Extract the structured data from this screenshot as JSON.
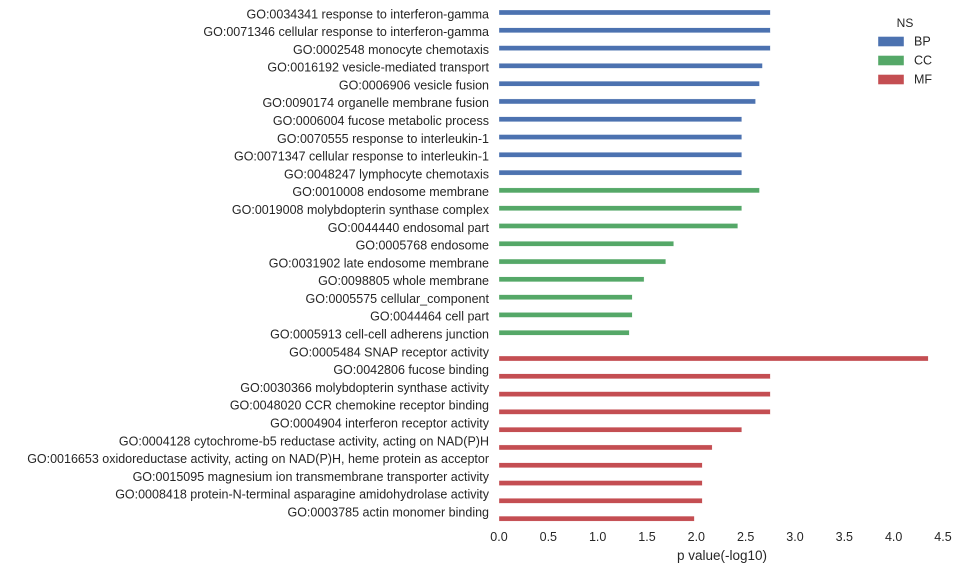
{
  "chart_data": {
    "type": "bar",
    "orientation": "horizontal",
    "xlabel": "p value(-log10)",
    "xlim": [
      0,
      4.5
    ],
    "xticks": [
      "0.0",
      "0.5",
      "1.0",
      "1.5",
      "2.0",
      "2.5",
      "3.0",
      "3.5",
      "4.0",
      "4.5"
    ],
    "grid": false,
    "legend": {
      "title": "NS",
      "placement": "top-right",
      "entries": [
        {
          "name": "BP",
          "color": "#4c72b0"
        },
        {
          "name": "CC",
          "color": "#55a868"
        },
        {
          "name": "MF",
          "color": "#c44e52"
        }
      ]
    },
    "categories": [
      "GO:0034341 response to interferon-gamma",
      "GO:0071346 cellular response to interferon-gamma",
      "GO:0002548 monocyte chemotaxis",
      "GO:0016192 vesicle-mediated transport",
      "GO:0006906 vesicle fusion",
      "GO:0090174 organelle membrane fusion",
      "GO:0006004 fucose metabolic process",
      "GO:0070555 response to interleukin-1",
      "GO:0071347 cellular response to interleukin-1",
      "GO:0048247 lymphocyte chemotaxis",
      "GO:0010008 endosome membrane",
      "GO:0019008 molybdopterin synthase complex",
      "GO:0044440 endosomal part",
      "GO:0005768 endosome",
      "GO:0031902 late endosome membrane",
      "GO:0098805 whole membrane",
      "GO:0005575 cellular_component",
      "GO:0044464 cell part",
      "GO:0005913 cell-cell adherens junction",
      "GO:0005484 SNAP receptor activity",
      "GO:0042806 fucose binding",
      "GO:0030366 molybdopterin synthase activity",
      "GO:0048020 CCR chemokine receptor binding",
      "GO:0004904 interferon receptor activity",
      "GO:0004128 cytochrome-b5 reductase activity, acting on NAD(P)H",
      "GO:0016653 oxidoreductase activity, acting on NAD(P)H, heme protein as acceptor",
      "GO:0015095 magnesium ion transmembrane transporter activity",
      "GO:0008418 protein-N-terminal asparagine amidohydrolase activity",
      "GO:0003785 actin monomer binding"
    ],
    "ns": [
      "BP",
      "BP",
      "BP",
      "BP",
      "BP",
      "BP",
      "BP",
      "BP",
      "BP",
      "BP",
      "CC",
      "CC",
      "CC",
      "CC",
      "CC",
      "CC",
      "CC",
      "CC",
      "CC",
      "MF",
      "MF",
      "MF",
      "MF",
      "MF",
      "MF",
      "MF",
      "MF",
      "MF",
      "MF"
    ],
    "values": [
      2.75,
      2.75,
      2.75,
      2.67,
      2.64,
      2.6,
      2.46,
      2.46,
      2.46,
      2.46,
      2.64,
      2.46,
      2.42,
      1.77,
      1.69,
      1.47,
      1.35,
      1.35,
      1.32,
      4.35,
      2.75,
      2.75,
      2.75,
      2.46,
      2.16,
      2.06,
      2.06,
      2.06,
      1.98
    ]
  }
}
